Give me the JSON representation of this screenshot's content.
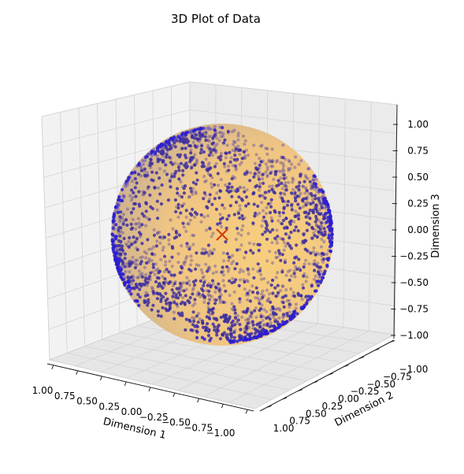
{
  "chart_data": {
    "type": "scatter",
    "title": "3D Plot of Data",
    "xlabel": "Dimension 1",
    "ylabel": "Dimension 2",
    "zlabel": "Dimension 3",
    "xlim": [
      -1.0,
      1.0
    ],
    "ylim": [
      -1.0,
      1.0
    ],
    "zlim": [
      -1.0,
      1.0
    ],
    "x_ticks": [
      "1.00",
      "0.75",
      "0.50",
      "0.25",
      "0.00",
      "−0.25",
      "−0.50",
      "−0.75",
      "−1.00"
    ],
    "y_ticks": [
      "1.00",
      "0.75",
      "0.50",
      "0.25",
      "0.00",
      "−0.25",
      "−0.50",
      "−0.75",
      "−1.00"
    ],
    "z_ticks": [
      "1.00",
      "0.75",
      "0.50",
      "0.25",
      "0.00",
      "−0.25",
      "−0.50",
      "−0.75",
      "−1.00"
    ],
    "grid": true,
    "sphere": {
      "radius": 1.0,
      "center": [
        0,
        0,
        0
      ],
      "color": "#f6c56b"
    },
    "center_marker": {
      "x": 0,
      "y": 0,
      "z": 0,
      "symbol": "x",
      "color": "#d03a10"
    },
    "series": [
      {
        "marker_color": "#3d2fa0",
        "band_count": 2,
        "point_count": 2200
      }
    ]
  }
}
